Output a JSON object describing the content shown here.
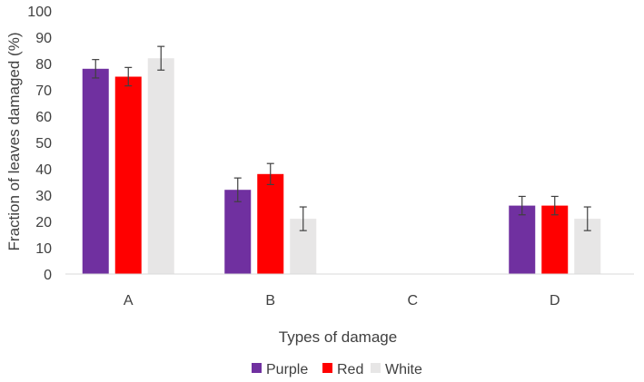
{
  "chart_data": {
    "type": "bar",
    "title": "",
    "xlabel": "Types of damage",
    "ylabel": "Fraction of leaves damaged (%)",
    "ylim": [
      0,
      100
    ],
    "yticks": [
      0,
      10,
      20,
      30,
      40,
      50,
      60,
      70,
      80,
      90,
      100
    ],
    "categories": [
      "A",
      "B",
      "C",
      "D"
    ],
    "series": [
      {
        "name": "Purple",
        "color": "#7030A0",
        "values": [
          78,
          32,
          0,
          26
        ],
        "errors": [
          3.5,
          4.5,
          0,
          3.5
        ]
      },
      {
        "name": "Red",
        "color": "#FF0000",
        "values": [
          75,
          38,
          0,
          26
        ],
        "errors": [
          3.5,
          4.0,
          0,
          3.5
        ]
      },
      {
        "name": "White",
        "color": "#E7E6E6",
        "values": [
          82,
          21,
          0,
          21
        ],
        "errors": [
          4.5,
          4.5,
          0,
          4.5
        ]
      }
    ],
    "grid": false,
    "legend_position": "bottom"
  }
}
